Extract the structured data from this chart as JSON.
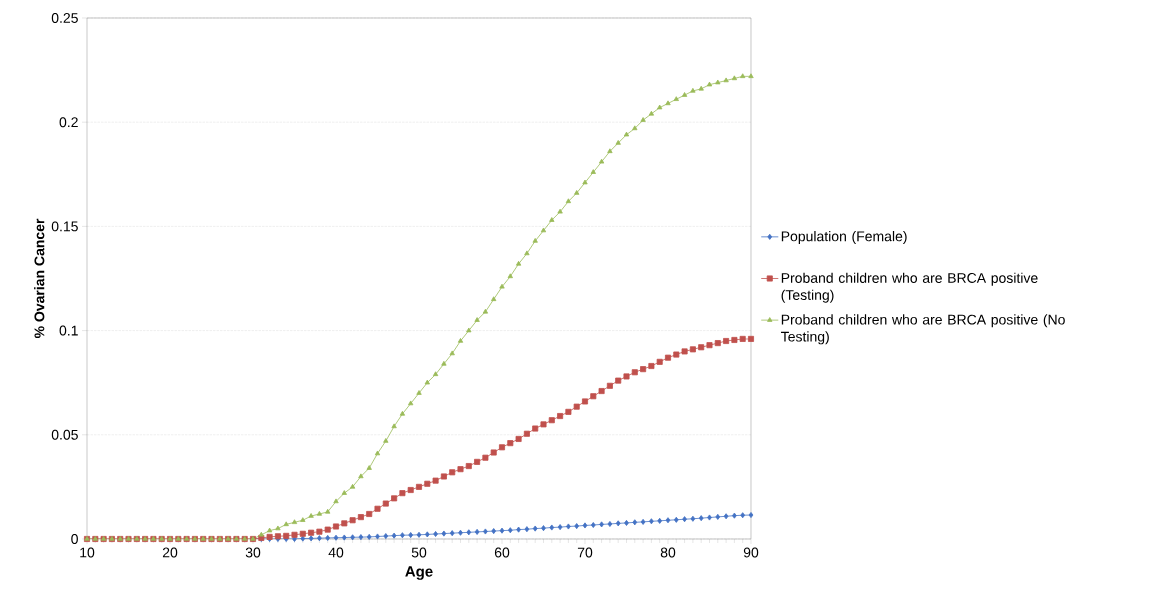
{
  "chart_data": {
    "type": "line",
    "xlabel": "Age",
    "ylabel": "% Ovarian Cancer",
    "x": [
      10,
      11,
      12,
      13,
      14,
      15,
      16,
      17,
      18,
      19,
      20,
      21,
      22,
      23,
      24,
      25,
      26,
      27,
      28,
      29,
      30,
      31,
      32,
      33,
      34,
      35,
      36,
      37,
      38,
      39,
      40,
      41,
      42,
      43,
      44,
      45,
      46,
      47,
      48,
      49,
      50,
      51,
      52,
      53,
      54,
      55,
      56,
      57,
      58,
      59,
      60,
      61,
      62,
      63,
      64,
      65,
      66,
      67,
      68,
      69,
      70,
      71,
      72,
      73,
      74,
      75,
      76,
      77,
      78,
      79,
      80,
      81,
      82,
      83,
      84,
      85,
      86,
      87,
      88,
      89,
      90
    ],
    "series": [
      {
        "name": "Population (Female)",
        "color": "#4472c4",
        "marker": "diamond",
        "values": [
          null,
          null,
          null,
          null,
          null,
          null,
          null,
          null,
          null,
          null,
          null,
          null,
          null,
          null,
          null,
          null,
          null,
          null,
          null,
          null,
          0,
          0,
          0,
          0,
          0,
          0,
          0.0002,
          0.0003,
          0.0004,
          0.0005,
          0.0006,
          0.0007,
          0.0008,
          0.0009,
          0.001,
          0.0012,
          0.0014,
          0.0016,
          0.0018,
          0.0019,
          0.002,
          0.0022,
          0.0024,
          0.0026,
          0.0028,
          0.003,
          0.0032,
          0.0034,
          0.0036,
          0.0038,
          0.004,
          0.0042,
          0.0045,
          0.0047,
          0.005,
          0.0052,
          0.0055,
          0.0057,
          0.006,
          0.0062,
          0.0065,
          0.0067,
          0.007,
          0.0072,
          0.0075,
          0.0077,
          0.008,
          0.0082,
          0.0085,
          0.0087,
          0.009,
          0.0092,
          0.0095,
          0.0097,
          0.01,
          0.0103,
          0.0106,
          0.0109,
          0.0112,
          0.0114,
          0.0115
        ]
      },
      {
        "name": "Proband children who are BRCA positive (Testing)",
        "color": "#c0504d",
        "marker": "square",
        "values": [
          0,
          0,
          0,
          0,
          0,
          0,
          0,
          0,
          0,
          0,
          0,
          0,
          0,
          0,
          0,
          0,
          0,
          0,
          0,
          0,
          0,
          0.0005,
          0.001,
          0.0013,
          0.0015,
          0.002,
          0.0025,
          0.003,
          0.0035,
          0.0045,
          0.006,
          0.0075,
          0.009,
          0.0105,
          0.012,
          0.0145,
          0.017,
          0.0195,
          0.022,
          0.0235,
          0.025,
          0.0265,
          0.028,
          0.03,
          0.032,
          0.0335,
          0.035,
          0.037,
          0.039,
          0.0415,
          0.044,
          0.046,
          0.048,
          0.0505,
          0.053,
          0.055,
          0.057,
          0.059,
          0.061,
          0.0635,
          0.066,
          0.0685,
          0.071,
          0.0735,
          0.076,
          0.078,
          0.08,
          0.0815,
          0.083,
          0.085,
          0.087,
          0.0885,
          0.09,
          0.091,
          0.092,
          0.093,
          0.094,
          0.095,
          0.0955,
          0.096,
          0.096
        ]
      },
      {
        "name": "Proband children who are BRCA positive (No Testing)",
        "color": "#9bbb59",
        "marker": "triangle",
        "values": [
          0,
          0,
          0,
          0,
          0,
          0,
          0,
          0,
          0,
          0,
          0,
          0,
          0,
          0,
          0,
          0,
          0,
          0,
          0,
          0,
          0,
          0.002,
          0.004,
          0.005,
          0.007,
          0.008,
          0.009,
          0.011,
          0.012,
          0.013,
          0.018,
          0.022,
          0.025,
          0.03,
          0.034,
          0.041,
          0.047,
          0.054,
          0.06,
          0.065,
          0.07,
          0.075,
          0.079,
          0.084,
          0.089,
          0.095,
          0.1,
          0.105,
          0.109,
          0.115,
          0.121,
          0.126,
          0.132,
          0.137,
          0.143,
          0.148,
          0.153,
          0.157,
          0.162,
          0.166,
          0.171,
          0.176,
          0.181,
          0.186,
          0.19,
          0.194,
          0.197,
          0.201,
          0.204,
          0.207,
          0.209,
          0.211,
          0.213,
          0.215,
          0.216,
          0.218,
          0.219,
          0.22,
          0.221,
          0.222,
          0.222
        ]
      }
    ],
    "xlim": [
      10,
      90
    ],
    "xticks": [
      10,
      20,
      30,
      40,
      50,
      60,
      70,
      80,
      90
    ],
    "ylim": [
      0,
      0.25
    ],
    "yticks": [
      0,
      0.05,
      0.1,
      0.15,
      0.2,
      0.25
    ],
    "grid": "y",
    "legend": "right",
    "line_style": "solid"
  }
}
